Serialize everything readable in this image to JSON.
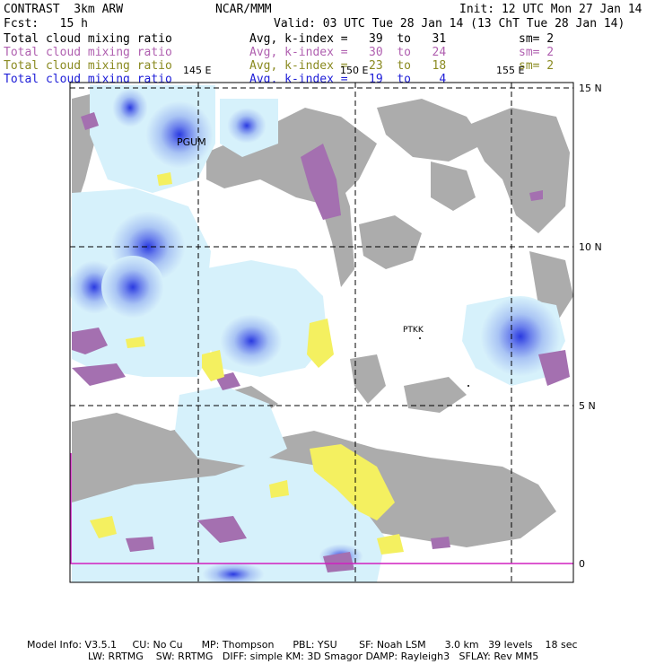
{
  "header": {
    "model": "CONTRAST  3km ARW",
    "org": "NCAR/MMM",
    "init": "Init: 12 UTC Mon 27 Jan 14",
    "fcst": "Fcst:   15 h",
    "valid": "Valid: 03 UTC Tue 28 Jan 14 (13 ChT Tue 28 Jan 14)"
  },
  "legend": [
    {
      "field": "Total cloud mixing ratio",
      "range": "Avg, k-index =   39  to   31",
      "sm": "sm= 2",
      "color": "#000000"
    },
    {
      "field": "Total cloud mixing ratio",
      "range": "Avg, k-index =   30  to   24",
      "sm": "sm= 2",
      "color": "#b060b0"
    },
    {
      "field": "Total cloud mixing ratio",
      "range": "Avg, k-index =   23  to   18",
      "sm": "sm= 2",
      "color": "#8a8a20"
    },
    {
      "field": "Total cloud mixing ratio",
      "range": "Avg, k-index =   19  to    4",
      "sm": "",
      "color": "#2020d8"
    }
  ],
  "map": {
    "lat_labels": [
      "15 N",
      "10 N",
      "5 N",
      "0"
    ],
    "lon_labels": [
      "145 E",
      "150 E",
      "155 E"
    ],
    "stations": [
      "PGUM",
      "PTKK"
    ]
  },
  "footer": {
    "line1": "Model Info: V3.5.1     CU: No Cu      MP: Thompson      PBL: YSU       SF: Noah LSM      3.0 km   39 levels    18 sec",
    "line2": "LW: RRTMG    SW: RRTMG   DIFF: simple KM: 3D Smagor DAMP: Rayleigh3   SFLAY: Rev MM5"
  }
}
